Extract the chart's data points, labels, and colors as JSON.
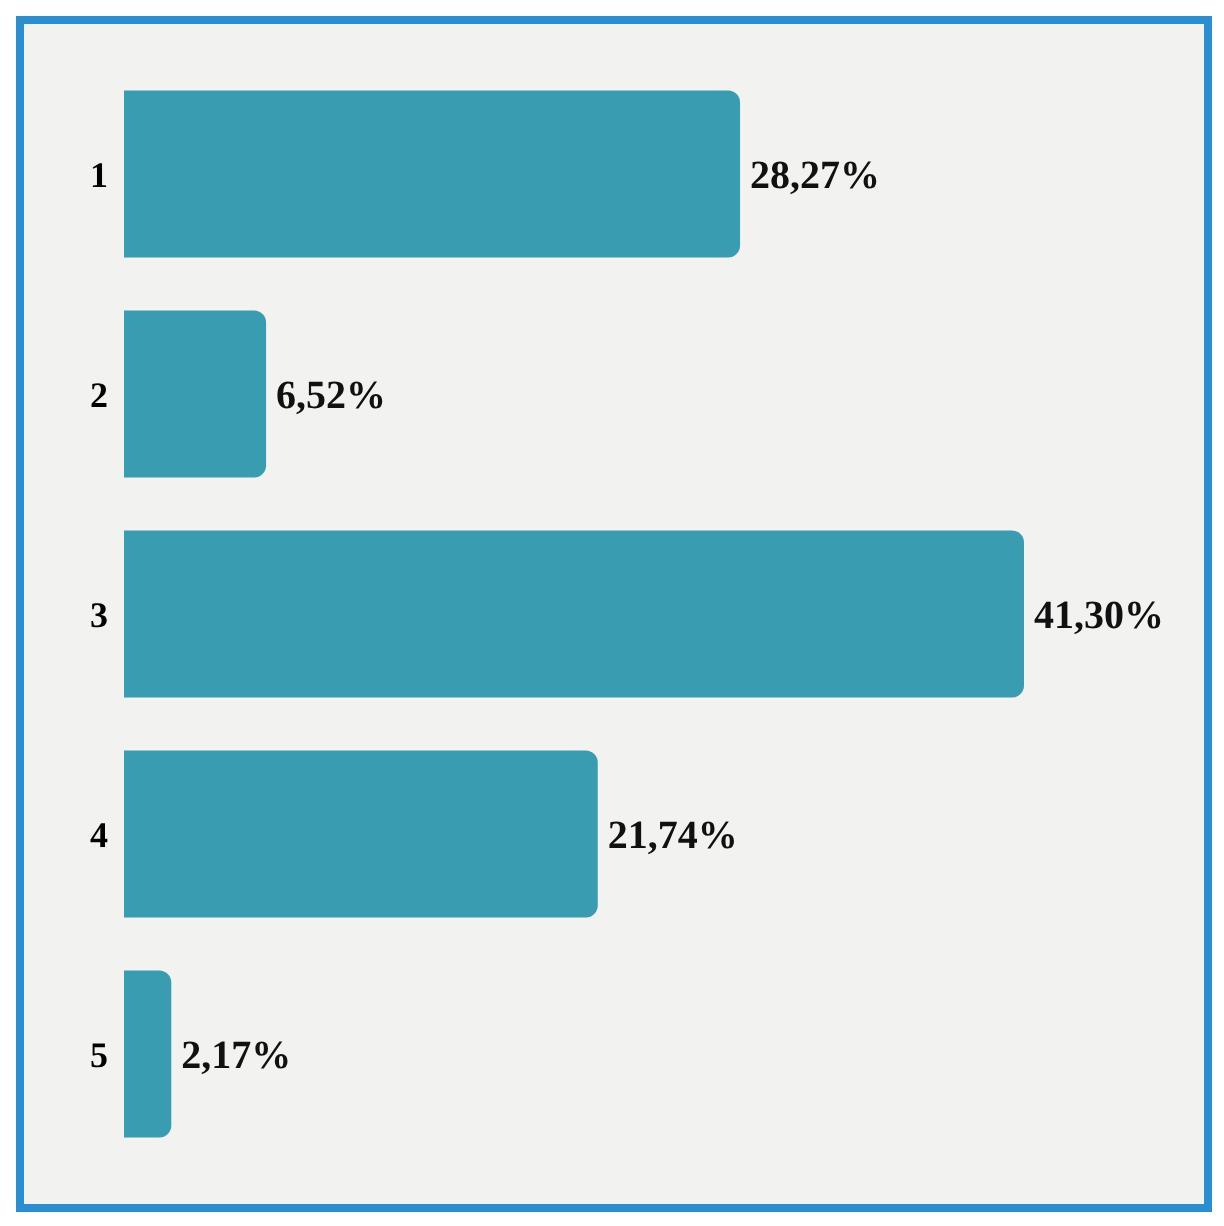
{
  "chart_data": {
    "type": "bar",
    "orientation": "horizontal",
    "categories": [
      "1",
      "2",
      "3",
      "4",
      "5"
    ],
    "values": [
      28.27,
      6.52,
      41.3,
      21.74,
      2.17
    ],
    "value_labels": [
      "28,27%",
      "6,52%",
      "41,30%",
      "21,74%",
      "2,17%"
    ],
    "color": "#3a9cb0",
    "tick_labels": "y"
  }
}
